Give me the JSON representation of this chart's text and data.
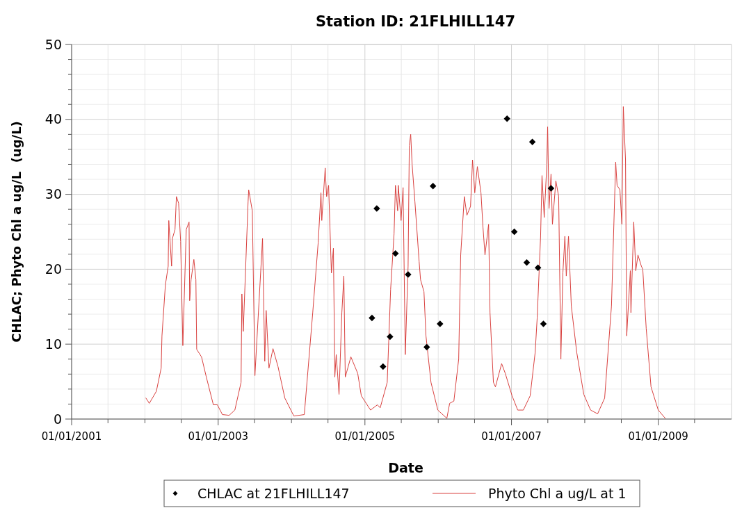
{
  "chart_data": {
    "type": "line",
    "title": "Station ID: 21FLHILL147",
    "xlabel": "Date",
    "ylabel": "CHLAC; Phyto Chl a ug/L  (ug/L)",
    "xlim": [
      "2001-01-01",
      "2010-01-01"
    ],
    "xticks": [
      {
        "value": "2001-01-01",
        "label": "01/01/2001"
      },
      {
        "value": "2001-07-01",
        "label": null
      },
      {
        "value": "2002-01-01",
        "label": null
      },
      {
        "value": "2002-07-01",
        "label": null
      },
      {
        "value": "2003-01-01",
        "label": "01/01/2003"
      },
      {
        "value": "2003-07-01",
        "label": null
      },
      {
        "value": "2004-01-01",
        "label": null
      },
      {
        "value": "2004-07-01",
        "label": null
      },
      {
        "value": "2005-01-01",
        "label": "01/01/2005"
      },
      {
        "value": "2005-07-01",
        "label": null
      },
      {
        "value": "2006-01-01",
        "label": null
      },
      {
        "value": "2006-07-01",
        "label": null
      },
      {
        "value": "2007-01-01",
        "label": "01/01/2007"
      },
      {
        "value": "2007-07-01",
        "label": null
      },
      {
        "value": "2008-01-01",
        "label": null
      },
      {
        "value": "2008-07-01",
        "label": null
      },
      {
        "value": "2009-01-01",
        "label": "01/01/2009"
      },
      {
        "value": "2009-07-01",
        "label": null
      }
    ],
    "ylim": [
      0,
      50
    ],
    "yticks": [
      0,
      {
        "value": 2,
        "label": null
      },
      {
        "value": 4,
        "label": null
      },
      {
        "value": 6,
        "label": null
      },
      {
        "value": 8,
        "label": null
      },
      10,
      {
        "value": 12,
        "label": null
      },
      {
        "value": 14,
        "label": null
      },
      {
        "value": 16,
        "label": null
      },
      {
        "value": 18,
        "label": null
      },
      20,
      {
        "value": 22,
        "label": null
      },
      {
        "value": 24,
        "label": null
      },
      {
        "value": 26,
        "label": null
      },
      {
        "value": 28,
        "label": null
      },
      30,
      {
        "value": 32,
        "label": null
      },
      {
        "value": 34,
        "label": null
      },
      {
        "value": 36,
        "label": null
      },
      {
        "value": 38,
        "label": null
      },
      40,
      {
        "value": 42,
        "label": null
      },
      {
        "value": 44,
        "label": null
      },
      {
        "value": 46,
        "label": null
      },
      {
        "value": 48,
        "label": null
      },
      50
    ],
    "grid": true,
    "legend": "bottom",
    "series": [
      {
        "name": "CHLAC at 21FLHILL147",
        "type": "scatter",
        "marker": "diamond",
        "color": "#000000",
        "x": [
          "2005-02-05",
          "2005-03-01",
          "2005-04-01",
          "2005-05-06",
          "2005-06-02",
          "2005-08-04",
          "2005-11-05",
          "2005-12-06",
          "2006-01-10",
          "2006-12-10",
          "2007-01-15",
          "2007-03-18",
          "2007-04-15",
          "2007-05-13",
          "2007-06-09",
          "2007-07-17"
        ],
        "values": [
          13.5,
          28.1,
          7.0,
          11.0,
          22.1,
          19.3,
          9.6,
          31.1,
          12.7,
          40.1,
          25.0,
          20.9,
          37.0,
          20.2,
          12.7,
          30.8
        ]
      },
      {
        "name": "Phyto Chl a ug/L at 1",
        "marker": "none",
        "line_style": "solid",
        "color": "#d9413f",
        "x": [
          "2002-01-06",
          "2002-01-23",
          "2002-02-27",
          "2002-03-23",
          "2002-03-27",
          "2002-04-13",
          "2002-04-27",
          "2002-04-30",
          "2002-05-14",
          "2002-05-18",
          "2002-05-31",
          "2002-06-07",
          "2002-06-18",
          "2002-06-28",
          "2002-07-09",
          "2002-07-26",
          "2002-08-09",
          "2002-08-12",
          "2002-08-19",
          "2002-09-02",
          "2002-09-12",
          "2002-09-16",
          "2002-10-10",
          "2002-11-03",
          "2002-12-08",
          "2002-12-28",
          "2003-01-22",
          "2003-02-25",
          "2003-03-25",
          "2003-04-25",
          "2003-04-29",
          "2003-05-06",
          "2003-05-30",
          "2003-06-02",
          "2003-06-20",
          "2003-07-03",
          "2003-08-10",
          "2003-08-21",
          "2003-08-28",
          "2003-09-11",
          "2003-10-01",
          "2003-10-26",
          "2003-11-29",
          "2004-01-13",
          "2004-03-05",
          "2004-04-16",
          "2004-05-13",
          "2004-05-27",
          "2004-05-31",
          "2004-06-17",
          "2004-06-24",
          "2004-07-04",
          "2004-07-18",
          "2004-07-28",
          "2004-08-04",
          "2004-08-11",
          "2004-08-25",
          "2004-09-08",
          "2004-09-18",
          "2004-09-25",
          "2004-10-23",
          "2004-11-26",
          "2004-12-14",
          "2005-01-29",
          "2005-03-04",
          "2005-03-18",
          "2005-04-22",
          "2005-05-09",
          "2005-05-26",
          "2005-06-02",
          "2005-06-13",
          "2005-06-16",
          "2005-06-30",
          "2005-07-10",
          "2005-07-21",
          "2005-08-04",
          "2005-08-10",
          "2005-08-17",
          "2005-08-24",
          "2005-09-07",
          "2005-09-28",
          "2005-10-05",
          "2005-10-22",
          "2005-11-01",
          "2005-11-26",
          "2005-12-30",
          "2006-02-13",
          "2006-02-27",
          "2006-03-20",
          "2006-04-13",
          "2006-04-23",
          "2006-05-11",
          "2006-05-24",
          "2006-06-11",
          "2006-06-21",
          "2006-07-02",
          "2006-07-15",
          "2006-08-02",
          "2006-08-12",
          "2006-08-22",
          "2006-09-09",
          "2006-09-16",
          "2006-10-03",
          "2006-10-13",
          "2006-11-13",
          "2006-12-01",
          "2007-01-04",
          "2007-02-01",
          "2007-03-01",
          "2007-04-04",
          "2007-04-29",
          "2007-05-09",
          "2007-05-26",
          "2007-06-02",
          "2007-06-13",
          "2007-06-26",
          "2007-06-30",
          "2007-07-07",
          "2007-07-17",
          "2007-07-24",
          "2007-08-10",
          "2007-08-24",
          "2007-09-04",
          "2007-09-14",
          "2007-09-24",
          "2007-10-01",
          "2007-10-12",
          "2007-10-26",
          "2007-11-22",
          "2007-12-27",
          "2008-01-30",
          "2008-03-05",
          "2008-04-09",
          "2008-05-13",
          "2008-06-03",
          "2008-06-10",
          "2008-06-24",
          "2008-07-04",
          "2008-07-11",
          "2008-07-22",
          "2008-07-28",
          "2008-08-15",
          "2008-08-18",
          "2008-09-01",
          "2008-09-11",
          "2008-09-22",
          "2008-10-09",
          "2008-10-16",
          "2008-11-02",
          "2008-11-26",
          "2009-01-01",
          "2009-02-05"
        ],
        "values": [
          2.8,
          2.1,
          3.7,
          6.8,
          11.1,
          17.9,
          20.4,
          26.5,
          20.4,
          24.1,
          25.3,
          29.7,
          28.8,
          23.7,
          9.8,
          25.3,
          26.3,
          15.8,
          18.6,
          21.3,
          18.6,
          9.3,
          8.3,
          5.6,
          1.9,
          1.9,
          0.6,
          0.5,
          1.2,
          4.9,
          16.7,
          11.7,
          29,
          30.6,
          27.8,
          5.8,
          24.1,
          7.7,
          14.5,
          6.8,
          9.4,
          7,
          2.8,
          0.4,
          0.6,
          14.2,
          23.5,
          30.2,
          26.5,
          33.5,
          29.7,
          31.2,
          19.5,
          22.8,
          5.6,
          8.6,
          3.3,
          14.2,
          19.1,
          5.6,
          8.3,
          6.1,
          3.1,
          1.2,
          1.9,
          1.5,
          4.9,
          17.3,
          24.7,
          31.2,
          27.8,
          31.2,
          26.5,
          30.9,
          8.6,
          20.4,
          36.5,
          38.0,
          34,
          29,
          21,
          18.6,
          17,
          11.1,
          4.9,
          1.2,
          0.1,
          2.1,
          2.4,
          8.0,
          21.9,
          29.7,
          27.2,
          28.4,
          34.6,
          30.2,
          33.7,
          30.2,
          25.6,
          21.9,
          26,
          14.2,
          4.9,
          4.3,
          7.4,
          6.1,
          3.1,
          1.2,
          1.2,
          3.1,
          8.9,
          13.5,
          24.4,
          32.5,
          26.9,
          34,
          39.0,
          28.1,
          32.7,
          26,
          31.8,
          29.7,
          8.0,
          19.5,
          24.4,
          19.1,
          24.4,
          15.1,
          8.9,
          3.3,
          1.2,
          0.7,
          2.8,
          15.1,
          34.3,
          31.2,
          30.6,
          26,
          41.7,
          34.6,
          11.1,
          19.8,
          14.2,
          26.3,
          19.8,
          21.9,
          20.4,
          20,
          12.1,
          4.3,
          1.2,
          0.1
        ]
      }
    ]
  }
}
